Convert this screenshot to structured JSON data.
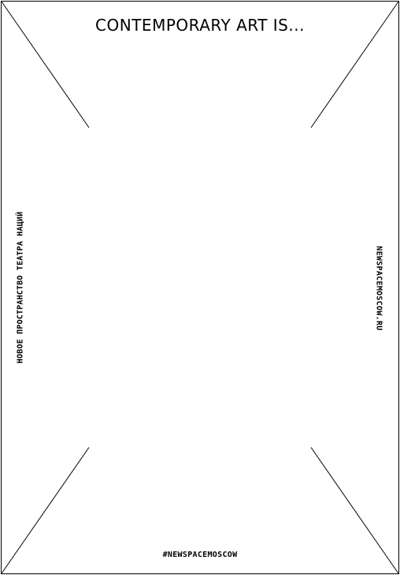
{
  "poster": {
    "title": "CONTEMPORARY ART IS...",
    "left_vertical_text": "НОВОЕ ПРОСТРАНСТВО ТЕАТРА НАЦИЙ",
    "right_vertical_text": "NEWSPACEMOSCOW.RU",
    "hashtag": "#NEWSPACEMOSCOW"
  },
  "colors": {
    "background": "#ffffff",
    "ink": "#000000"
  }
}
